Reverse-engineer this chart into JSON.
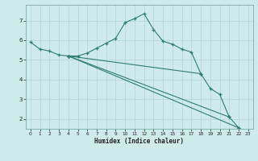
{
  "xlabel": "Humidex (Indice chaleur)",
  "background_color": "#ceeaea",
  "grid_color": "#b8d8d8",
  "line_color": "#2e7d72",
  "xlim": [
    -0.5,
    23.5
  ],
  "ylim": [
    1.5,
    7.8
  ],
  "yticks": [
    2,
    3,
    4,
    5,
    6,
    7
  ],
  "xticks": [
    0,
    1,
    2,
    3,
    4,
    5,
    6,
    7,
    8,
    9,
    10,
    11,
    12,
    13,
    14,
    15,
    16,
    17,
    18,
    19,
    20,
    21,
    22,
    23
  ],
  "series": [
    {
      "x": [
        0,
        1,
        2,
        3,
        4,
        5,
        6,
        7,
        8,
        9,
        10,
        11,
        12,
        13,
        14,
        15,
        16,
        17,
        18,
        19,
        20,
        21,
        22
      ],
      "y": [
        5.9,
        5.55,
        5.45,
        5.25,
        5.2,
        5.2,
        5.35,
        5.6,
        5.85,
        6.1,
        6.9,
        7.1,
        7.35,
        6.55,
        5.95,
        5.8,
        5.55,
        5.4,
        4.3,
        3.55,
        3.25,
        2.1,
        1.55
      ]
    },
    {
      "x": [
        4,
        22
      ],
      "y": [
        5.2,
        1.55
      ]
    },
    {
      "comment": "line from x=4,y=5.2 to x=21,y=2.1",
      "x": [
        4,
        21
      ],
      "y": [
        5.2,
        2.1
      ]
    },
    {
      "comment": "line from x=4,y=5.2 to x=18,y=4.3",
      "x": [
        4,
        18
      ],
      "y": [
        5.2,
        4.3
      ]
    }
  ]
}
